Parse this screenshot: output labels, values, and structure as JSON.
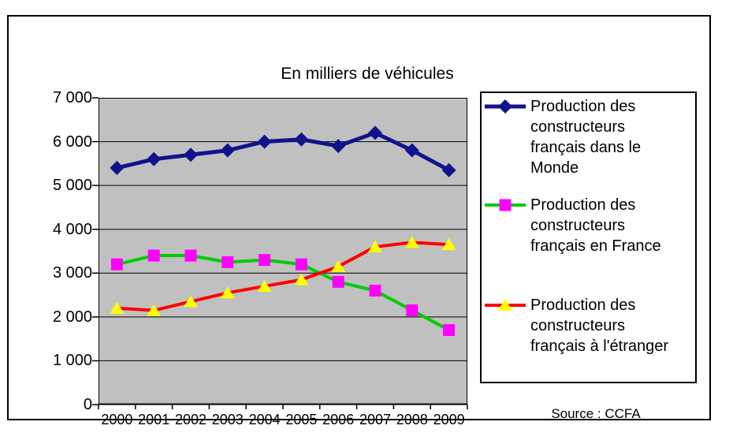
{
  "chart": {
    "title": "En milliers de véhicules",
    "source": "Source : CCFA"
  },
  "chart_data": {
    "type": "line",
    "title": "En milliers de véhicules",
    "source": "Source : CCFA",
    "categories": [
      "2000",
      "2001",
      "2002",
      "2003",
      "2004",
      "2005",
      "2006",
      "2007",
      "2008",
      "2009"
    ],
    "ylim": [
      0,
      7000
    ],
    "ytick_step": 1000,
    "ytick_labels": [
      "0",
      "1 000",
      "2 000",
      "3 000",
      "4 000",
      "5 000",
      "6 000",
      "7 000"
    ],
    "grid": true,
    "legend_position": "right",
    "plot_background": "#c0c0c0",
    "gridline_color": "#000000",
    "series": [
      {
        "name": "Production des constructeurs français dans le Monde",
        "label_lines": [
          "Production des",
          "constructeurs",
          "français dans le",
          "Monde"
        ],
        "marker": "diamond",
        "line_color": "#12128c",
        "marker_color": "#12128c",
        "line_width": 5,
        "values": [
          5400,
          5600,
          5700,
          5800,
          6000,
          6050,
          5900,
          6200,
          5800,
          5350
        ]
      },
      {
        "name": "Production des constructeurs français en France",
        "label_lines": [
          "Production des",
          "constructeurs",
          "français en France"
        ],
        "marker": "square",
        "line_color": "#00cc00",
        "marker_color": "#ff00ff",
        "line_width": 4,
        "values": [
          3200,
          3400,
          3400,
          3250,
          3300,
          3200,
          2800,
          2600,
          2150,
          1700
        ]
      },
      {
        "name": "Production des constructeurs français à l'étranger",
        "label_lines": [
          "Production des",
          "constructeurs",
          "français à l'étranger"
        ],
        "marker": "triangle",
        "line_color": "#ff0000",
        "marker_color": "#ffff00",
        "line_width": 4,
        "values": [
          2200,
          2150,
          2350,
          2550,
          2700,
          2850,
          3150,
          3600,
          3700,
          3650
        ]
      }
    ]
  }
}
